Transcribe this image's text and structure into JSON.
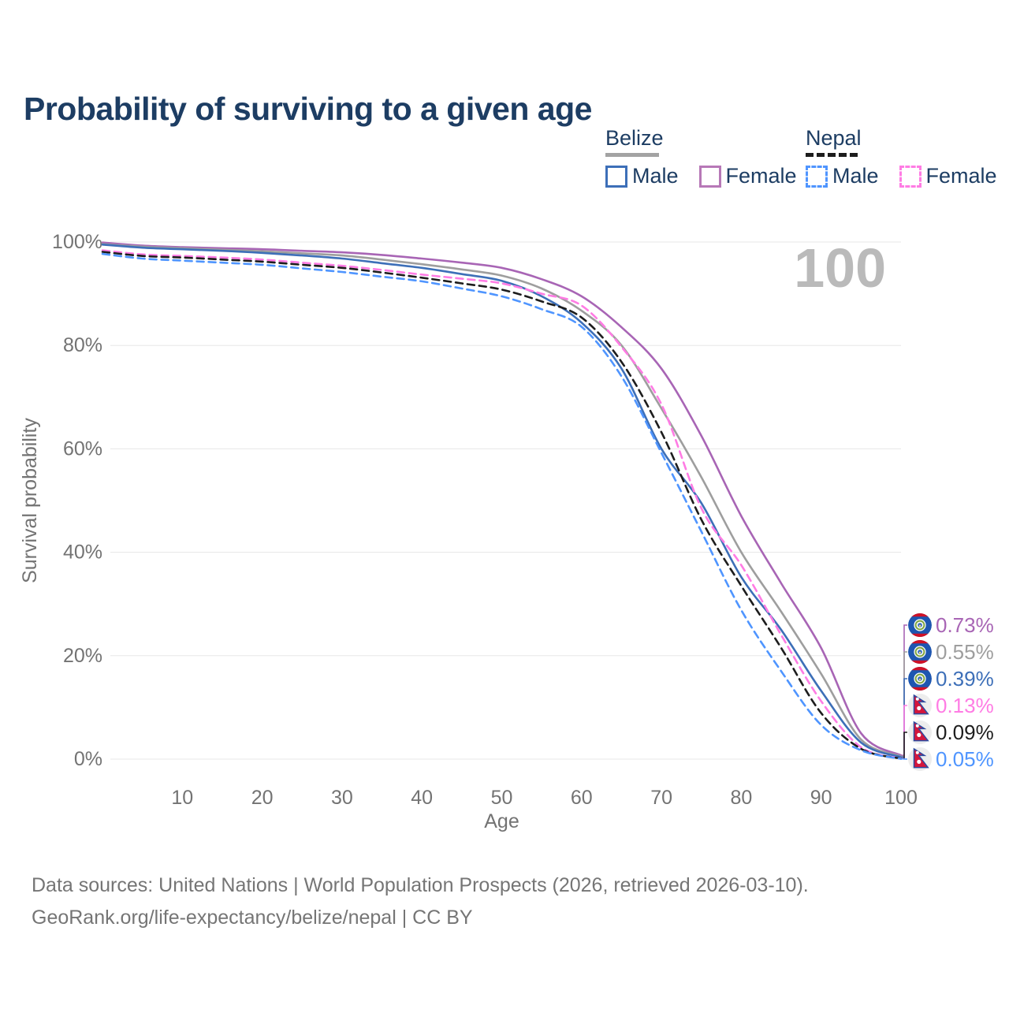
{
  "title": "Probability of surviving to a given age",
  "legend": {
    "groups": [
      {
        "country": "Belize",
        "style": "solid",
        "line_color": "#a3a3a3",
        "items": [
          {
            "label": "Male",
            "color": "#5585c5"
          },
          {
            "label": "Female",
            "color": "#b778b7"
          }
        ]
      },
      {
        "country": "Nepal",
        "style": "dashed",
        "line_color": "#1d1d1d",
        "items": [
          {
            "label": "Male",
            "color": "#4f95ff"
          },
          {
            "label": "Female",
            "color": "#ff7ce4"
          }
        ]
      }
    ]
  },
  "footer": {
    "line1": "Data sources: United Nations | World Population Prospects (2026, retrieved 2026-03-10).",
    "line2": "GeoRank.org/life-expectancy/belize/nepal | CC BY"
  },
  "chart_data": {
    "type": "line",
    "title": "Probability of surviving to a given age",
    "xlabel": "Age",
    "ylabel": "Survival probability",
    "xlim": [
      0,
      100
    ],
    "ylim": [
      0,
      100
    ],
    "grid": "horizontal",
    "watermark": "100",
    "x_ticks": [
      10,
      20,
      30,
      40,
      50,
      60,
      70,
      80,
      90,
      100
    ],
    "y_ticks": [
      0,
      20,
      40,
      60,
      80,
      100
    ],
    "y_tick_suffix": "%",
    "x": [
      0,
      5,
      10,
      15,
      20,
      25,
      30,
      35,
      40,
      45,
      50,
      55,
      60,
      65,
      70,
      75,
      80,
      85,
      90,
      95,
      100
    ],
    "series": [
      {
        "name": "Belize Female",
        "country": "Belize",
        "sex": "Female",
        "flag": "belize",
        "style": "solid",
        "color": "#a865b5",
        "end_label": "0.73%",
        "values": [
          99.9,
          99.3,
          99.0,
          98.8,
          98.6,
          98.3,
          98.0,
          97.5,
          96.8,
          96.0,
          95.0,
          92.8,
          89.5,
          83.5,
          75.5,
          62.5,
          47.0,
          34.0,
          21.5,
          5.0,
          0.73
        ]
      },
      {
        "name": "Belize",
        "country": "Belize",
        "sex": "Both",
        "flag": "belize",
        "style": "solid",
        "color": "#9e9e9e",
        "end_label": "0.55%",
        "values": [
          99.6,
          99.1,
          98.8,
          98.5,
          98.2,
          97.8,
          97.4,
          96.6,
          95.7,
          94.7,
          93.5,
          91.0,
          86.7,
          80.0,
          67.8,
          54.5,
          40.0,
          28.5,
          16.5,
          3.8,
          0.55
        ]
      },
      {
        "name": "Belize Male",
        "country": "Belize",
        "sex": "Male",
        "flag": "belize",
        "style": "solid",
        "color": "#3d6fb8",
        "end_label": "0.39%",
        "values": [
          99.5,
          98.9,
          98.6,
          98.3,
          97.9,
          97.4,
          96.8,
          95.9,
          95.0,
          93.8,
          92.5,
          89.5,
          84.4,
          75.5,
          60.0,
          49.5,
          35.2,
          25.0,
          13.2,
          3.2,
          0.39
        ]
      },
      {
        "name": "Nepal Female",
        "country": "Nepal",
        "sex": "Female",
        "flag": "nepal",
        "style": "dashed",
        "color": "#ff7ce4",
        "end_label": "0.13%",
        "values": [
          98.4,
          97.6,
          97.3,
          97.0,
          96.6,
          96.0,
          95.4,
          94.6,
          93.7,
          92.9,
          92.0,
          90.0,
          87.7,
          79.7,
          68.6,
          48.5,
          37.5,
          24.0,
          11.2,
          2.3,
          0.13
        ]
      },
      {
        "name": "Nepal",
        "country": "Nepal",
        "sex": "Both",
        "flag": "nepal",
        "style": "dashed",
        "color": "#1d1d1d",
        "end_label": "0.09%",
        "values": [
          98.1,
          97.3,
          97.0,
          96.6,
          96.2,
          95.6,
          95.0,
          94.1,
          93.1,
          92.0,
          90.8,
          88.5,
          85.4,
          76.8,
          63.2,
          46.3,
          33.5,
          21.5,
          8.9,
          2.0,
          0.09
        ]
      },
      {
        "name": "Nepal Male",
        "country": "Nepal",
        "sex": "Male",
        "flag": "nepal",
        "style": "dashed",
        "color": "#4f95ff",
        "end_label": "0.05%",
        "values": [
          97.7,
          96.8,
          96.4,
          96.0,
          95.6,
          94.9,
          94.2,
          93.3,
          92.4,
          91.0,
          89.5,
          87.0,
          83.6,
          74.0,
          59.2,
          44.0,
          28.8,
          17.0,
          6.6,
          1.7,
          0.05
        ]
      }
    ]
  }
}
